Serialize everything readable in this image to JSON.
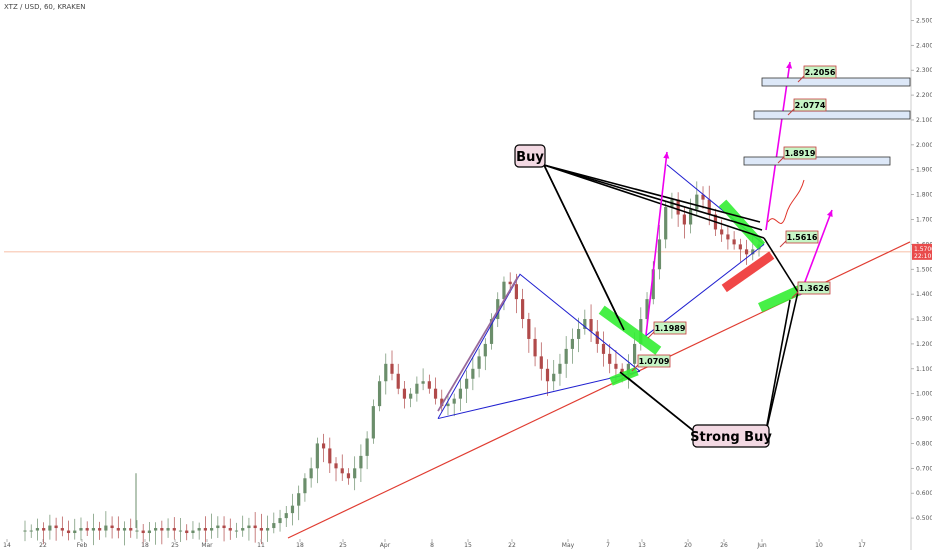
{
  "header": {
    "symbol": "XTZ / USD, 60, KRAKEN"
  },
  "colors": {
    "candle_up": "#6b8e6b",
    "candle_down": "#b04a4a",
    "trendline_red": "#e03c31",
    "triangle_blue": "#2020d0",
    "arrow_magenta": "#ee00ee",
    "arrow_purple": "#9a6a9a",
    "zone_green": "#33ee33",
    "zone_red": "#ee3333",
    "box_fill": "#dde8f8",
    "box_stroke": "#333333",
    "label_fill": "#c6f5c6",
    "label_stroke": "#c53c3c",
    "callout_fill": "#f3d9e3",
    "hline": "#f4a98a",
    "current_price_bg": "#e94b4b"
  },
  "chart_data": {
    "type": "candlestick",
    "y_scale": "linear",
    "ylim": [
      0.42,
      2.55
    ],
    "y_ticks": [
      "2.5000",
      "2.4000",
      "2.3000",
      "2.2000",
      "2.1000",
      "2.0000",
      "1.9000",
      "1.8000",
      "1.7000",
      "1.6000",
      "1.5000",
      "1.4000",
      "1.3000",
      "1.2000",
      "1.1000",
      "1.0000",
      "0.9000",
      "0.8000",
      "0.7000",
      "0.6000",
      "0.5000"
    ],
    "x_ticks": [
      "14",
      "22",
      "Feb",
      "18",
      "25",
      "Mar",
      "11",
      "18",
      "25",
      "Apr",
      "8",
      "15",
      "22",
      "May",
      "7",
      "13",
      "20",
      "26",
      "Jun",
      "10",
      "17"
    ],
    "current_price": {
      "value_label": "1.5700",
      "time_label": "22:10"
    },
    "price_series": [
      0.45,
      0.45,
      0.46,
      0.45,
      0.47,
      0.46,
      0.45,
      0.44,
      0.45,
      0.46,
      0.45,
      0.46,
      0.45,
      0.47,
      0.46,
      0.45,
      0.46,
      0.45,
      0.45,
      0.44,
      0.45,
      0.46,
      0.45,
      0.46,
      0.45,
      0.45,
      0.44,
      0.45,
      0.46,
      0.45,
      0.46,
      0.47,
      0.46,
      0.45,
      0.45,
      0.46,
      0.47,
      0.46,
      0.45,
      0.46,
      0.48,
      0.5,
      0.52,
      0.55,
      0.6,
      0.66,
      0.7,
      0.8,
      0.78,
      0.72,
      0.7,
      0.68,
      0.66,
      0.7,
      0.75,
      0.82,
      0.95,
      1.05,
      1.12,
      1.08,
      1.02,
      0.98,
      1.0,
      1.04,
      1.05,
      1.02,
      0.98,
      0.95,
      0.96,
      0.98,
      1.02,
      1.06,
      1.1,
      1.15,
      1.2,
      1.3,
      1.38,
      1.45,
      1.44,
      1.38,
      1.3,
      1.22,
      1.15,
      1.1,
      1.05,
      1.08,
      1.12,
      1.18,
      1.22,
      1.26,
      1.3,
      1.25,
      1.2,
      1.16,
      1.12,
      1.1,
      1.08,
      1.12,
      1.2,
      1.3,
      1.38,
      1.5,
      1.62,
      1.75,
      1.78,
      1.72,
      1.68,
      1.74,
      1.8,
      1.78,
      1.72,
      1.66,
      1.64,
      1.62,
      1.6,
      1.58,
      1.56,
      1.58,
      1.6
    ],
    "price_series_x_range": [
      "14",
      "Jun"
    ],
    "levels": [
      {
        "label": "2.2056",
        "value": 2.2056
      },
      {
        "label": "2.0774",
        "value": 2.0774
      },
      {
        "label": "1.8919",
        "value": 1.8919
      },
      {
        "label": "1.5616",
        "value": 1.5616
      },
      {
        "label": "1.3626",
        "value": 1.3626
      },
      {
        "label": "1.1989",
        "value": 1.1989
      },
      {
        "label": "1.0709",
        "value": 1.0709
      }
    ],
    "annotations": {
      "buy_label": "Buy",
      "strong_buy_label": "Strong Buy"
    }
  }
}
